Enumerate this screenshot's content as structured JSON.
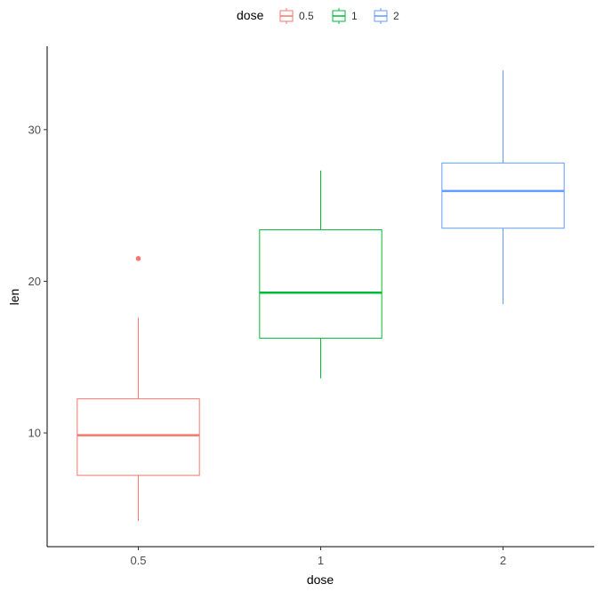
{
  "chart_data": {
    "type": "box",
    "xlabel": "dose",
    "ylabel": "len",
    "ylim": [
      2.5,
      35.5
    ],
    "y_ticks": [
      "10",
      "20",
      "30"
    ],
    "grid": false,
    "legend": {
      "title": "dose",
      "position": "top",
      "entries": [
        "0.5",
        "1",
        "2"
      ]
    },
    "categories": [
      "0.5",
      "1",
      "2"
    ],
    "series": [
      {
        "category": "0.5",
        "color": "#F8766D",
        "min": 4.2,
        "q1": 7.2,
        "median": 9.85,
        "q3": 12.25,
        "max": 17.6,
        "outliers": [
          21.5
        ]
      },
      {
        "category": "1",
        "color": "#00BA38",
        "min": 13.6,
        "q1": 16.25,
        "median": 19.25,
        "q3": 23.4,
        "max": 27.3,
        "outliers": []
      },
      {
        "category": "2",
        "color": "#619CFF",
        "min": 18.5,
        "q1": 23.5,
        "median": 25.95,
        "q3": 27.8,
        "max": 33.9,
        "outliers": []
      }
    ]
  }
}
